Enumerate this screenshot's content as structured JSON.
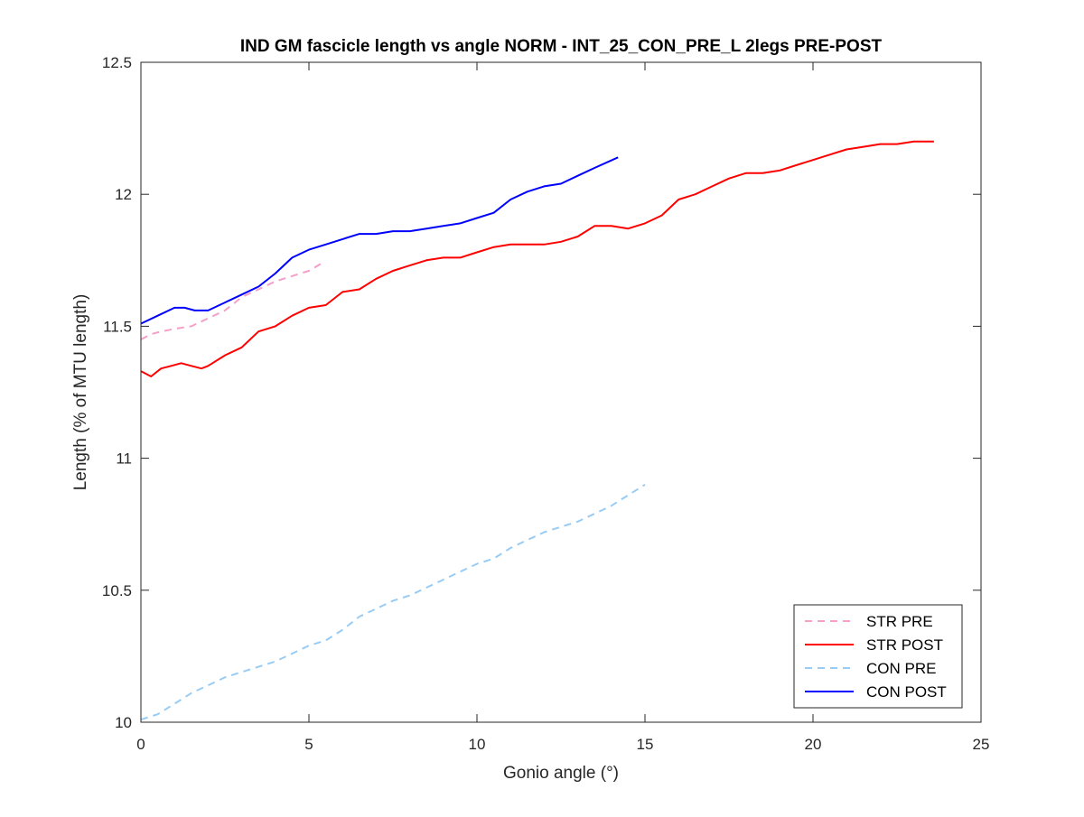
{
  "chart_data": {
    "type": "line",
    "title": "IND GM fascicle length vs angle NORM - INT_25_CON_PRE_L 2legs PRE-POST",
    "xlabel": "Gonio angle (°)",
    "ylabel": "Length (% of MTU length)",
    "xlim": [
      0,
      25
    ],
    "ylim": [
      10,
      12.5
    ],
    "xticks": [
      0,
      5,
      10,
      15,
      20,
      25
    ],
    "yticks": [
      10,
      10.5,
      11,
      11.5,
      12,
      12.5
    ],
    "xtick_labels": [
      "0",
      "5",
      "10",
      "15",
      "20",
      "25"
    ],
    "ytick_labels": [
      "10",
      "10.5",
      "11",
      "11.5",
      "12",
      "12.5"
    ],
    "grid": false,
    "legend_position": "bottom-right",
    "series": [
      {
        "name": "STR PRE",
        "color": "#f4a0c8",
        "dash": "dashed",
        "x": [
          0,
          0.3,
          0.6,
          1.0,
          1.5,
          2.0,
          2.5,
          3.0,
          3.5,
          4.0,
          4.5,
          5.0,
          5.4
        ],
        "y": [
          11.45,
          11.47,
          11.48,
          11.49,
          11.5,
          11.53,
          11.56,
          11.61,
          11.64,
          11.67,
          11.69,
          11.71,
          11.74
        ]
      },
      {
        "name": "STR POST",
        "color": "#ff0000",
        "dash": "solid",
        "x": [
          0,
          0.3,
          0.6,
          0.9,
          1.2,
          1.5,
          1.8,
          2.0,
          2.5,
          3.0,
          3.5,
          4.0,
          4.5,
          5.0,
          5.5,
          6.0,
          6.5,
          7.0,
          7.5,
          8.0,
          8.5,
          9.0,
          9.5,
          10.0,
          10.5,
          11.0,
          11.5,
          12.0,
          12.5,
          13.0,
          13.5,
          14.0,
          14.5,
          15.0,
          15.5,
          16.0,
          16.5,
          17.0,
          17.5,
          18.0,
          18.5,
          19.0,
          19.5,
          20.0,
          20.5,
          21.0,
          21.5,
          22.0,
          22.5,
          23.0,
          23.6
        ],
        "y": [
          11.33,
          11.31,
          11.34,
          11.35,
          11.36,
          11.35,
          11.34,
          11.35,
          11.39,
          11.42,
          11.48,
          11.5,
          11.54,
          11.57,
          11.58,
          11.63,
          11.64,
          11.68,
          11.71,
          11.73,
          11.75,
          11.76,
          11.76,
          11.78,
          11.8,
          11.81,
          11.81,
          11.81,
          11.82,
          11.84,
          11.88,
          11.88,
          11.87,
          11.89,
          11.92,
          11.98,
          12.0,
          12.03,
          12.06,
          12.08,
          12.08,
          12.09,
          12.11,
          12.13,
          12.15,
          12.17,
          12.18,
          12.19,
          12.19,
          12.2,
          12.2
        ]
      },
      {
        "name": "CON PRE",
        "color": "#99ccf5",
        "dash": "dashed",
        "x": [
          0,
          0.5,
          1.0,
          1.5,
          2.0,
          2.5,
          3.0,
          3.5,
          4.0,
          4.5,
          5.0,
          5.5,
          6.0,
          6.5,
          7.0,
          7.5,
          8.0,
          8.5,
          9.0,
          9.5,
          10.0,
          10.5,
          11.0,
          11.5,
          12.0,
          12.5,
          13.0,
          13.5,
          14.0,
          14.5,
          15.0
        ],
        "y": [
          10.01,
          10.03,
          10.07,
          10.11,
          10.14,
          10.17,
          10.19,
          10.21,
          10.23,
          10.26,
          10.29,
          10.31,
          10.35,
          10.4,
          10.43,
          10.46,
          10.48,
          10.51,
          10.54,
          10.57,
          10.6,
          10.62,
          10.66,
          10.69,
          10.72,
          10.74,
          10.76,
          10.79,
          10.82,
          10.86,
          10.9
        ]
      },
      {
        "name": "CON POST",
        "color": "#0000ff",
        "dash": "solid",
        "x": [
          0,
          0.5,
          1.0,
          1.3,
          1.6,
          2.0,
          2.5,
          3.0,
          3.5,
          4.0,
          4.5,
          5.0,
          5.5,
          6.0,
          6.5,
          7.0,
          7.5,
          8.0,
          8.5,
          9.0,
          9.5,
          10.0,
          10.5,
          11.0,
          11.5,
          12.0,
          12.5,
          13.0,
          13.5,
          14.2
        ],
        "y": [
          11.51,
          11.54,
          11.57,
          11.57,
          11.56,
          11.56,
          11.59,
          11.62,
          11.65,
          11.7,
          11.76,
          11.79,
          11.81,
          11.83,
          11.85,
          11.85,
          11.86,
          11.86,
          11.87,
          11.88,
          11.89,
          11.91,
          11.93,
          11.98,
          12.01,
          12.03,
          12.04,
          12.07,
          12.1,
          12.14
        ]
      }
    ]
  }
}
